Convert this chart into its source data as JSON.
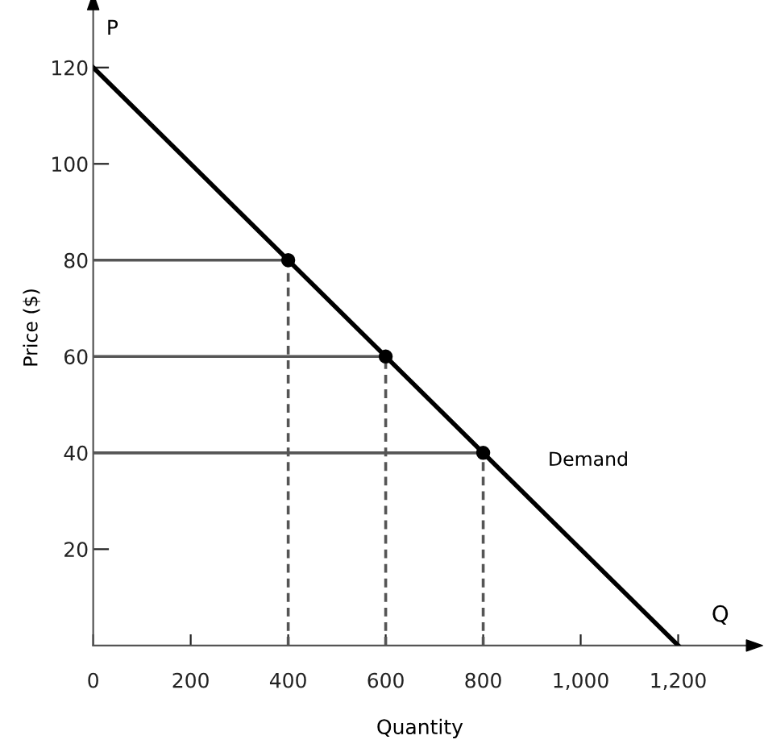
{
  "chart_data": {
    "type": "line",
    "xlabel": "Quantity",
    "ylabel": "Price ($)",
    "annotations": [
      "P",
      "Q"
    ],
    "series": [
      {
        "name": "Demand",
        "color": "#000000",
        "x": [
          0,
          1200
        ],
        "values": [
          120,
          0
        ],
        "line_style": "solid",
        "marker": "none"
      },
      {
        "type": "scatter",
        "color": "#000000",
        "x": [
          400,
          600,
          800
        ],
        "values": [
          80,
          60,
          40
        ],
        "marker": "circle"
      },
      {
        "type": "line",
        "color": "#555555",
        "x": [
          0,
          400
        ],
        "values": [
          80,
          80
        ],
        "line_style": "solid",
        "marker": "none"
      },
      {
        "type": "line",
        "color": "#555555",
        "x": [
          0,
          600
        ],
        "values": [
          60,
          60
        ],
        "line_style": "solid",
        "marker": "none"
      },
      {
        "type": "line",
        "color": "#555555",
        "x": [
          0,
          800
        ],
        "values": [
          40,
          40
        ],
        "line_style": "solid",
        "marker": "none"
      },
      {
        "type": "line",
        "color": "#555555",
        "x": [
          400,
          400
        ],
        "values": [
          0,
          80
        ],
        "line_style": "dashed",
        "marker": "none"
      },
      {
        "type": "line",
        "color": "#555555",
        "x": [
          600,
          600
        ],
        "values": [
          0,
          60
        ],
        "line_style": "dashed",
        "marker": "none"
      },
      {
        "type": "line",
        "color": "#555555",
        "x": [
          800,
          800
        ],
        "values": [
          0,
          40
        ],
        "line_style": "dashed",
        "marker": "none"
      }
    ],
    "xlim": [
      0,
      1340
    ],
    "ylim": [
      0,
      132
    ],
    "xticks": [
      {
        "value": 0,
        "label": "0"
      },
      200,
      400,
      600,
      800,
      {
        "value": 1000,
        "label": "1,000"
      },
      {
        "value": 1200,
        "label": "1,200"
      }
    ],
    "yticks": [
      20,
      40,
      60,
      80,
      100,
      120
    ],
    "grid": false,
    "legend": false
  }
}
